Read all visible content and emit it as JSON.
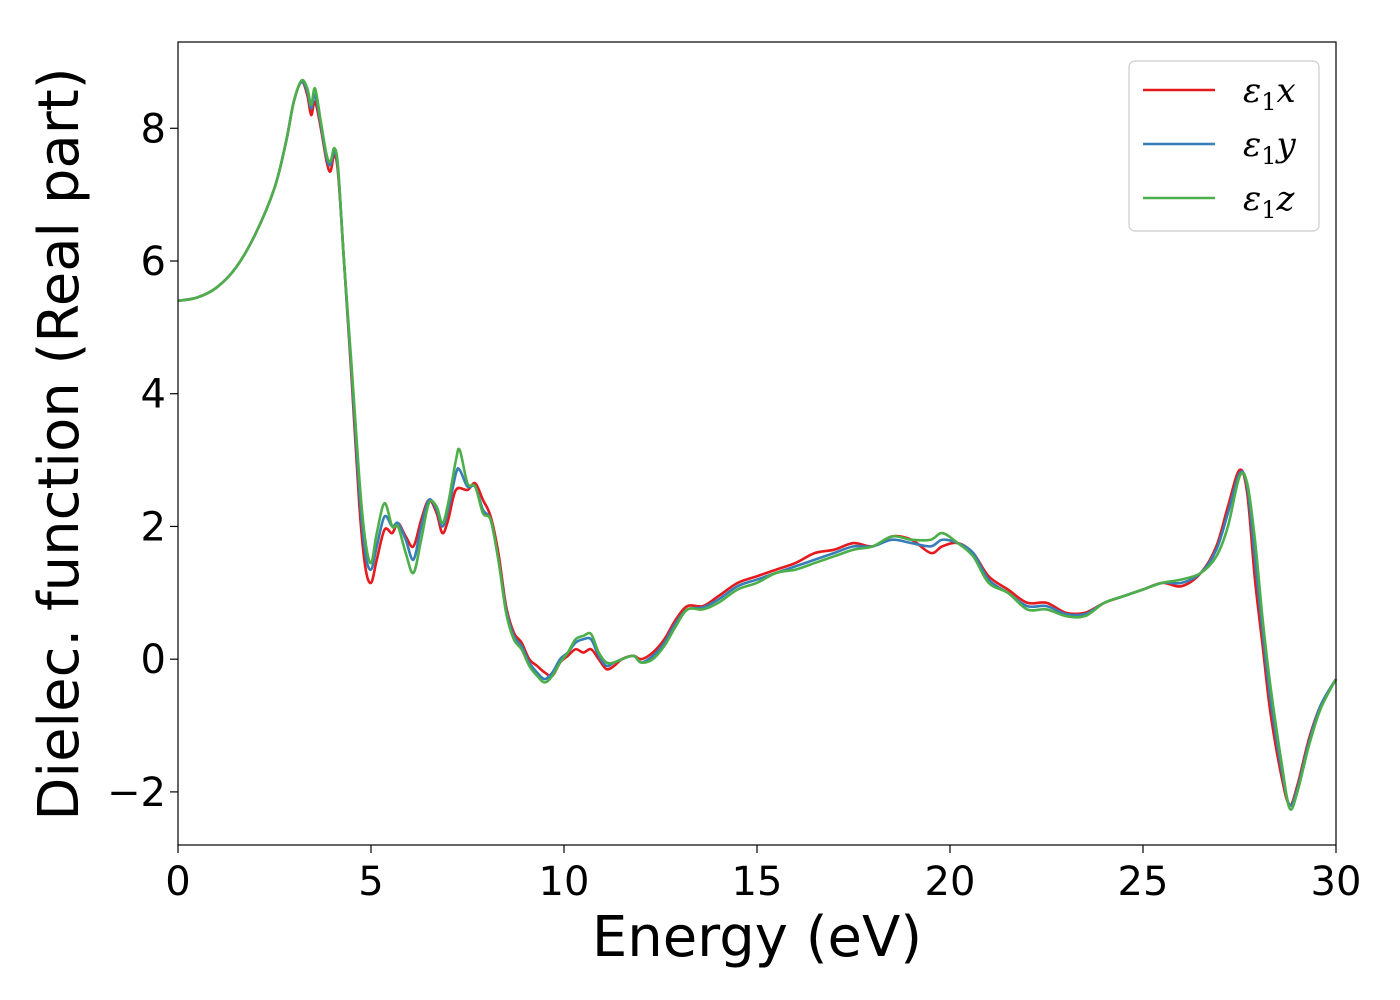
{
  "chart_data": {
    "type": "line",
    "xlabel": "Energy (eV)",
    "ylabel": "Dielec. function (Real part)",
    "xlim": [
      0,
      30
    ],
    "ylim": [
      -2.8,
      9.3
    ],
    "x_ticks": [
      0,
      5,
      10,
      15,
      20,
      25,
      30
    ],
    "x_tick_labels": [
      "0",
      "5",
      "10",
      "15",
      "20",
      "25",
      "30"
    ],
    "y_ticks": [
      -2,
      0,
      2,
      4,
      6,
      8
    ],
    "y_tick_labels": [
      "−2",
      "0",
      "2",
      "4",
      "6",
      "8"
    ],
    "grid": false,
    "legend_position": "top-right",
    "series": [
      {
        "name": "ε₁x",
        "legend_base": "ε",
        "legend_sub": "1",
        "legend_var": "x",
        "color": "#e41a1c",
        "points": [
          [
            0,
            5.4
          ],
          [
            0.5,
            5.45
          ],
          [
            1,
            5.6
          ],
          [
            1.5,
            5.9
          ],
          [
            2,
            6.4
          ],
          [
            2.5,
            7.1
          ],
          [
            2.8,
            7.8
          ],
          [
            3.0,
            8.4
          ],
          [
            3.2,
            8.7
          ],
          [
            3.35,
            8.5
          ],
          [
            3.45,
            8.2
          ],
          [
            3.55,
            8.4
          ],
          [
            3.7,
            8.0
          ],
          [
            3.85,
            7.5
          ],
          [
            3.95,
            7.35
          ],
          [
            4.05,
            7.6
          ],
          [
            4.15,
            7.3
          ],
          [
            4.3,
            6.0
          ],
          [
            4.5,
            4.2
          ],
          [
            4.7,
            2.3
          ],
          [
            4.85,
            1.4
          ],
          [
            5.0,
            1.15
          ],
          [
            5.15,
            1.5
          ],
          [
            5.35,
            1.95
          ],
          [
            5.55,
            1.9
          ],
          [
            5.7,
            2.05
          ],
          [
            5.9,
            1.85
          ],
          [
            6.1,
            1.7
          ],
          [
            6.3,
            2.1
          ],
          [
            6.5,
            2.4
          ],
          [
            6.7,
            2.2
          ],
          [
            6.85,
            1.9
          ],
          [
            7.0,
            2.1
          ],
          [
            7.2,
            2.55
          ],
          [
            7.5,
            2.55
          ],
          [
            7.7,
            2.65
          ],
          [
            7.9,
            2.4
          ],
          [
            8.1,
            2.15
          ],
          [
            8.3,
            1.6
          ],
          [
            8.5,
            0.8
          ],
          [
            8.7,
            0.4
          ],
          [
            8.9,
            0.25
          ],
          [
            9.1,
            0.0
          ],
          [
            9.3,
            -0.1
          ],
          [
            9.5,
            -0.2
          ],
          [
            9.7,
            -0.25
          ],
          [
            9.9,
            -0.05
          ],
          [
            10.1,
            0.05
          ],
          [
            10.3,
            0.15
          ],
          [
            10.5,
            0.1
          ],
          [
            10.7,
            0.15
          ],
          [
            10.9,
            0.0
          ],
          [
            11.1,
            -0.15
          ],
          [
            11.3,
            -0.1
          ],
          [
            11.5,
            0.0
          ],
          [
            11.8,
            0.05
          ],
          [
            12.0,
            0.0
          ],
          [
            12.3,
            0.1
          ],
          [
            12.6,
            0.3
          ],
          [
            12.9,
            0.6
          ],
          [
            13.2,
            0.8
          ],
          [
            13.6,
            0.8
          ],
          [
            14.0,
            0.95
          ],
          [
            14.5,
            1.15
          ],
          [
            15.0,
            1.25
          ],
          [
            15.5,
            1.35
          ],
          [
            16.0,
            1.45
          ],
          [
            16.5,
            1.6
          ],
          [
            17.0,
            1.65
          ],
          [
            17.5,
            1.75
          ],
          [
            18.0,
            1.7
          ],
          [
            18.5,
            1.85
          ],
          [
            19.0,
            1.8
          ],
          [
            19.5,
            1.6
          ],
          [
            19.8,
            1.7
          ],
          [
            20.2,
            1.75
          ],
          [
            20.6,
            1.6
          ],
          [
            21.0,
            1.25
          ],
          [
            21.5,
            1.05
          ],
          [
            22.0,
            0.85
          ],
          [
            22.5,
            0.85
          ],
          [
            23.0,
            0.7
          ],
          [
            23.5,
            0.7
          ],
          [
            24.0,
            0.85
          ],
          [
            24.5,
            0.95
          ],
          [
            25.0,
            1.05
          ],
          [
            25.5,
            1.15
          ],
          [
            26.0,
            1.1
          ],
          [
            26.5,
            1.3
          ],
          [
            26.9,
            1.7
          ],
          [
            27.2,
            2.3
          ],
          [
            27.5,
            2.85
          ],
          [
            27.7,
            2.5
          ],
          [
            27.9,
            1.2
          ],
          [
            28.1,
            0.2
          ],
          [
            28.3,
            -0.8
          ],
          [
            28.6,
            -1.8
          ],
          [
            28.8,
            -2.2
          ],
          [
            29.0,
            -1.9
          ],
          [
            29.3,
            -1.2
          ],
          [
            29.6,
            -0.7
          ],
          [
            30.0,
            -0.3
          ]
        ]
      },
      {
        "name": "ε₁y",
        "legend_base": "ε",
        "legend_sub": "1",
        "legend_var": "y",
        "color": "#377eb8",
        "points": [
          [
            0,
            5.4
          ],
          [
            0.5,
            5.45
          ],
          [
            1,
            5.6
          ],
          [
            1.5,
            5.9
          ],
          [
            2,
            6.4
          ],
          [
            2.5,
            7.1
          ],
          [
            2.8,
            7.8
          ],
          [
            3.0,
            8.4
          ],
          [
            3.2,
            8.7
          ],
          [
            3.35,
            8.55
          ],
          [
            3.45,
            8.3
          ],
          [
            3.55,
            8.5
          ],
          [
            3.7,
            8.05
          ],
          [
            3.85,
            7.55
          ],
          [
            3.95,
            7.45
          ],
          [
            4.05,
            7.65
          ],
          [
            4.15,
            7.35
          ],
          [
            4.3,
            6.0
          ],
          [
            4.5,
            4.3
          ],
          [
            4.7,
            2.5
          ],
          [
            4.85,
            1.6
          ],
          [
            5.0,
            1.35
          ],
          [
            5.15,
            1.7
          ],
          [
            5.35,
            2.15
          ],
          [
            5.55,
            2.0
          ],
          [
            5.7,
            2.05
          ],
          [
            5.9,
            1.8
          ],
          [
            6.1,
            1.5
          ],
          [
            6.3,
            2.0
          ],
          [
            6.5,
            2.4
          ],
          [
            6.7,
            2.25
          ],
          [
            6.85,
            2.0
          ],
          [
            7.0,
            2.25
          ],
          [
            7.2,
            2.8
          ],
          [
            7.3,
            2.85
          ],
          [
            7.5,
            2.6
          ],
          [
            7.7,
            2.6
          ],
          [
            7.9,
            2.25
          ],
          [
            8.1,
            2.1
          ],
          [
            8.3,
            1.5
          ],
          [
            8.5,
            0.75
          ],
          [
            8.7,
            0.35
          ],
          [
            8.9,
            0.2
          ],
          [
            9.1,
            -0.05
          ],
          [
            9.3,
            -0.2
          ],
          [
            9.5,
            -0.3
          ],
          [
            9.7,
            -0.2
          ],
          [
            9.9,
            0.0
          ],
          [
            10.1,
            0.1
          ],
          [
            10.3,
            0.25
          ],
          [
            10.5,
            0.3
          ],
          [
            10.7,
            0.3
          ],
          [
            10.9,
            0.05
          ],
          [
            11.1,
            -0.1
          ],
          [
            11.3,
            -0.05
          ],
          [
            11.5,
            0.0
          ],
          [
            11.8,
            0.05
          ],
          [
            12.0,
            -0.05
          ],
          [
            12.3,
            0.05
          ],
          [
            12.6,
            0.25
          ],
          [
            12.9,
            0.55
          ],
          [
            13.2,
            0.75
          ],
          [
            13.6,
            0.78
          ],
          [
            14.0,
            0.9
          ],
          [
            14.5,
            1.1
          ],
          [
            15.0,
            1.2
          ],
          [
            15.5,
            1.3
          ],
          [
            16.0,
            1.4
          ],
          [
            16.5,
            1.5
          ],
          [
            17.0,
            1.6
          ],
          [
            17.5,
            1.7
          ],
          [
            18.0,
            1.7
          ],
          [
            18.5,
            1.8
          ],
          [
            19.0,
            1.75
          ],
          [
            19.5,
            1.7
          ],
          [
            19.8,
            1.8
          ],
          [
            20.2,
            1.75
          ],
          [
            20.6,
            1.6
          ],
          [
            21.0,
            1.2
          ],
          [
            21.5,
            1.0
          ],
          [
            22.0,
            0.8
          ],
          [
            22.5,
            0.8
          ],
          [
            23.0,
            0.68
          ],
          [
            23.5,
            0.68
          ],
          [
            24.0,
            0.85
          ],
          [
            24.5,
            0.95
          ],
          [
            25.0,
            1.05
          ],
          [
            25.5,
            1.15
          ],
          [
            26.0,
            1.15
          ],
          [
            26.5,
            1.3
          ],
          [
            26.9,
            1.65
          ],
          [
            27.2,
            2.2
          ],
          [
            27.5,
            2.8
          ],
          [
            27.7,
            2.6
          ],
          [
            27.9,
            1.5
          ],
          [
            28.1,
            0.4
          ],
          [
            28.3,
            -0.6
          ],
          [
            28.6,
            -1.7
          ],
          [
            28.8,
            -2.2
          ],
          [
            29.0,
            -1.95
          ],
          [
            29.3,
            -1.25
          ],
          [
            29.6,
            -0.7
          ],
          [
            30.0,
            -0.3
          ]
        ]
      },
      {
        "name": "ε₁z",
        "legend_base": "ε",
        "legend_sub": "1",
        "legend_var": "z",
        "color": "#4daf4a",
        "points": [
          [
            0,
            5.4
          ],
          [
            0.5,
            5.45
          ],
          [
            1,
            5.6
          ],
          [
            1.5,
            5.9
          ],
          [
            2,
            6.4
          ],
          [
            2.5,
            7.1
          ],
          [
            2.8,
            7.8
          ],
          [
            3.0,
            8.4
          ],
          [
            3.2,
            8.72
          ],
          [
            3.35,
            8.6
          ],
          [
            3.45,
            8.35
          ],
          [
            3.55,
            8.6
          ],
          [
            3.7,
            8.1
          ],
          [
            3.85,
            7.6
          ],
          [
            3.95,
            7.5
          ],
          [
            4.05,
            7.7
          ],
          [
            4.15,
            7.4
          ],
          [
            4.3,
            6.0
          ],
          [
            4.5,
            4.4
          ],
          [
            4.7,
            2.7
          ],
          [
            4.85,
            1.8
          ],
          [
            5.0,
            1.45
          ],
          [
            5.15,
            1.9
          ],
          [
            5.35,
            2.35
          ],
          [
            5.55,
            2.0
          ],
          [
            5.7,
            2.0
          ],
          [
            5.9,
            1.6
          ],
          [
            6.1,
            1.3
          ],
          [
            6.3,
            1.8
          ],
          [
            6.5,
            2.35
          ],
          [
            6.7,
            2.3
          ],
          [
            6.85,
            2.05
          ],
          [
            7.0,
            2.35
          ],
          [
            7.2,
            3.0
          ],
          [
            7.3,
            3.15
          ],
          [
            7.5,
            2.65
          ],
          [
            7.7,
            2.6
          ],
          [
            7.9,
            2.2
          ],
          [
            8.1,
            2.1
          ],
          [
            8.3,
            1.5
          ],
          [
            8.5,
            0.7
          ],
          [
            8.7,
            0.3
          ],
          [
            8.9,
            0.15
          ],
          [
            9.1,
            -0.1
          ],
          [
            9.3,
            -0.25
          ],
          [
            9.5,
            -0.35
          ],
          [
            9.7,
            -0.25
          ],
          [
            9.9,
            -0.05
          ],
          [
            10.1,
            0.1
          ],
          [
            10.3,
            0.3
          ],
          [
            10.5,
            0.35
          ],
          [
            10.7,
            0.38
          ],
          [
            10.9,
            0.1
          ],
          [
            11.1,
            -0.05
          ],
          [
            11.3,
            -0.05
          ],
          [
            11.5,
            0.0
          ],
          [
            11.8,
            0.05
          ],
          [
            12.0,
            -0.05
          ],
          [
            12.3,
            0.0
          ],
          [
            12.6,
            0.2
          ],
          [
            12.9,
            0.5
          ],
          [
            13.2,
            0.75
          ],
          [
            13.6,
            0.75
          ],
          [
            14.0,
            0.85
          ],
          [
            14.5,
            1.05
          ],
          [
            15.0,
            1.15
          ],
          [
            15.5,
            1.3
          ],
          [
            16.0,
            1.35
          ],
          [
            16.5,
            1.45
          ],
          [
            17.0,
            1.55
          ],
          [
            17.5,
            1.65
          ],
          [
            18.0,
            1.7
          ],
          [
            18.5,
            1.85
          ],
          [
            19.0,
            1.8
          ],
          [
            19.5,
            1.8
          ],
          [
            19.8,
            1.9
          ],
          [
            20.2,
            1.75
          ],
          [
            20.6,
            1.55
          ],
          [
            21.0,
            1.15
          ],
          [
            21.5,
            1.0
          ],
          [
            22.0,
            0.75
          ],
          [
            22.5,
            0.75
          ],
          [
            23.0,
            0.65
          ],
          [
            23.5,
            0.65
          ],
          [
            24.0,
            0.85
          ],
          [
            24.5,
            0.95
          ],
          [
            25.0,
            1.05
          ],
          [
            25.5,
            1.15
          ],
          [
            26.0,
            1.2
          ],
          [
            26.5,
            1.3
          ],
          [
            26.9,
            1.55
          ],
          [
            27.2,
            2.0
          ],
          [
            27.5,
            2.75
          ],
          [
            27.7,
            2.65
          ],
          [
            27.9,
            1.8
          ],
          [
            28.1,
            0.6
          ],
          [
            28.3,
            -0.4
          ],
          [
            28.6,
            -1.6
          ],
          [
            28.8,
            -2.25
          ],
          [
            29.0,
            -2.0
          ],
          [
            29.3,
            -1.3
          ],
          [
            29.6,
            -0.75
          ],
          [
            30.0,
            -0.3
          ]
        ]
      }
    ]
  }
}
